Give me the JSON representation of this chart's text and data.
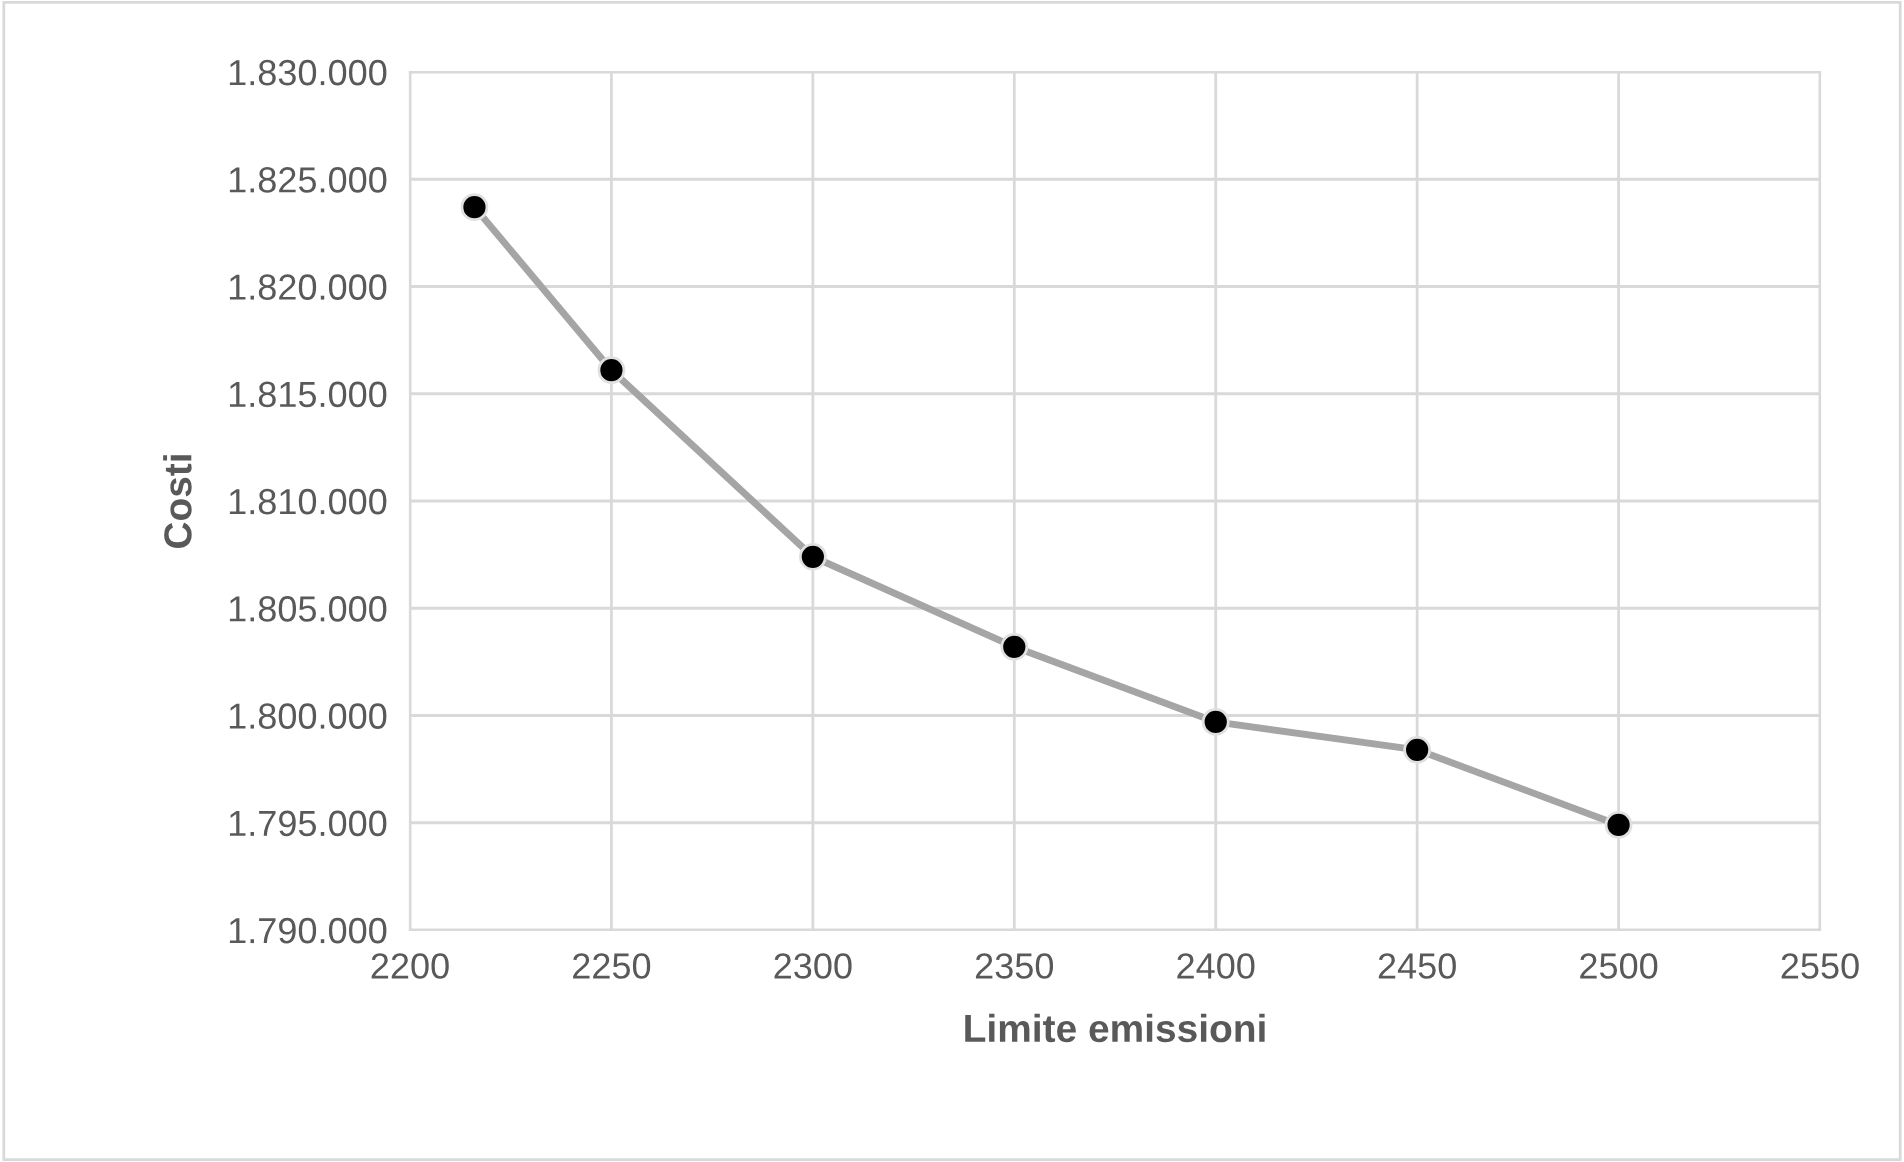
{
  "chart_data": {
    "type": "line",
    "xlabel": "Limite emissioni",
    "ylabel": "Costi",
    "x": [
      2216,
      2250,
      2300,
      2350,
      2400,
      2450,
      2500
    ],
    "series": [
      {
        "color": "#a5a5a5",
        "values": [
          1823700,
          1816100,
          1807400,
          1803200,
          1799700,
          1798400,
          1794900
        ]
      }
    ],
    "xlim": [
      2200,
      2550
    ],
    "xticks": [
      2200,
      2250,
      2300,
      2350,
      2400,
      2450,
      2500,
      2550
    ],
    "ylim": [
      1790000,
      1830000
    ],
    "yticks": [
      {
        "value": 1790000,
        "label": "1.790.000"
      },
      {
        "value": 1795000,
        "label": "1.795.000"
      },
      {
        "value": 1800000,
        "label": "1.800.000"
      },
      {
        "value": 1805000,
        "label": "1.805.000"
      },
      {
        "value": 1810000,
        "label": "1.810.000"
      },
      {
        "value": 1815000,
        "label": "1.815.000"
      },
      {
        "value": 1820000,
        "label": "1.820.000"
      },
      {
        "value": 1825000,
        "label": "1.825.000"
      },
      {
        "value": 1830000,
        "label": "1.830.000"
      }
    ],
    "grid": true,
    "marker": "circle",
    "line_style": "solid"
  }
}
